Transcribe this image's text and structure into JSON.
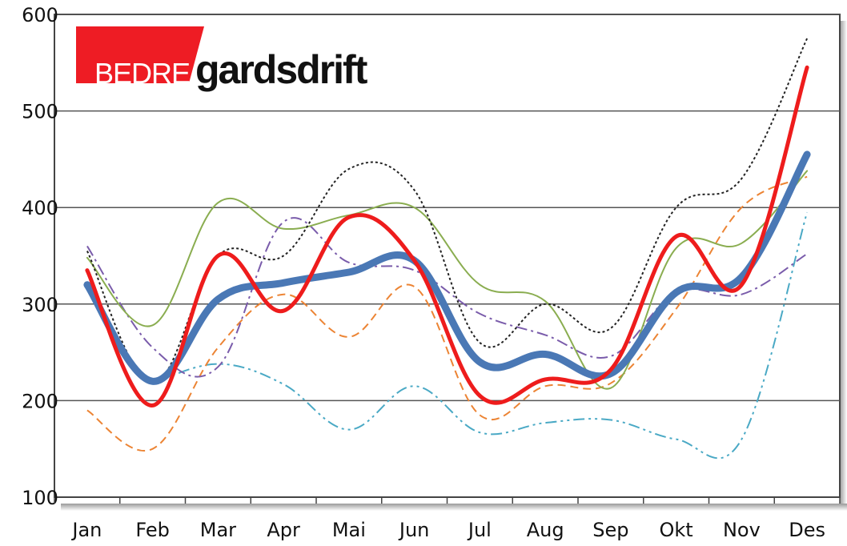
{
  "logo": {
    "part1": "BEDRE",
    "part2": "gardsdrift"
  },
  "chart_data": {
    "type": "line",
    "title": "",
    "xlabel": "",
    "ylabel": "",
    "categories": [
      "Jan",
      "Feb",
      "Mar",
      "Apr",
      "Mai",
      "Jun",
      "Jul",
      "Aug",
      "Sep",
      "Okt",
      "Nov",
      "Des"
    ],
    "ylim": [
      100,
      600
    ],
    "yticks": [
      100,
      200,
      300,
      400,
      500,
      600
    ],
    "grid": true,
    "legend": "none",
    "series": [
      {
        "color": "#4a78b5",
        "style": "solid",
        "width": 9,
        "values": [
          320,
          220,
          305,
          322,
          333,
          345,
          240,
          248,
          228,
          312,
          328,
          455
        ]
      },
      {
        "color": "#ee1c1c",
        "style": "solid",
        "width": 5,
        "values": [
          335,
          195,
          350,
          293,
          390,
          345,
          205,
          222,
          232,
          370,
          320,
          545
        ]
      },
      {
        "color": "#222222",
        "style": "dotted",
        "width": 2,
        "values": [
          355,
          218,
          350,
          350,
          440,
          418,
          260,
          300,
          275,
          400,
          430,
          575
        ]
      },
      {
        "color": "#8aad50",
        "style": "solid",
        "width": 2,
        "values": [
          348,
          278,
          405,
          378,
          392,
          400,
          320,
          303,
          213,
          358,
          363,
          438
        ]
      },
      {
        "color": "#7a5cab",
        "style": "dashdot",
        "width": 2,
        "values": [
          360,
          255,
          235,
          385,
          343,
          335,
          290,
          268,
          246,
          312,
          310,
          352
        ]
      },
      {
        "color": "#ec8434",
        "style": "dashed",
        "width": 2,
        "values": [
          190,
          150,
          255,
          310,
          266,
          318,
          185,
          215,
          218,
          295,
          400,
          432
        ]
      },
      {
        "color": "#4aa9c5",
        "style": "dashdotdot",
        "width": 2,
        "values": [
          null,
          218,
          238,
          217,
          170,
          215,
          167,
          177,
          180,
          160,
          160,
          395
        ]
      }
    ]
  }
}
